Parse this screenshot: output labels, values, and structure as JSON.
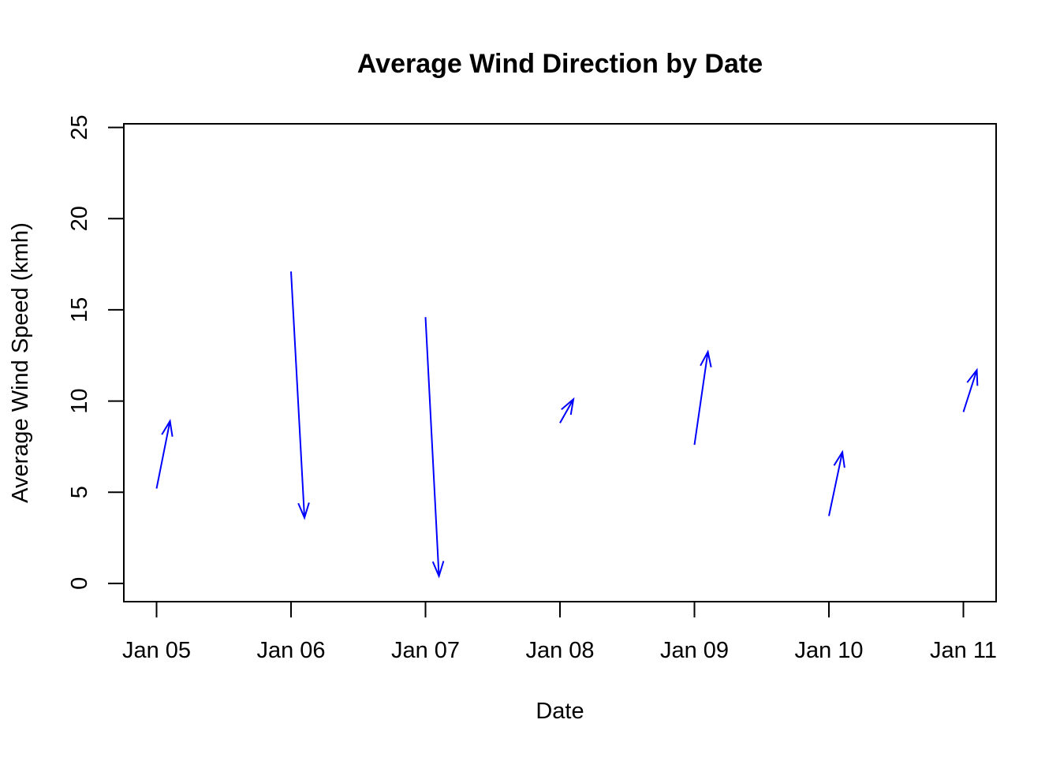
{
  "chart_data": {
    "type": "arrow-plot",
    "title": "Average Wind Direction by Date",
    "xlabel": "Date",
    "ylabel": "Average Wind Speed (kmh)",
    "x_ticks": [
      "Jan 05",
      "Jan 06",
      "Jan 07",
      "Jan 08",
      "Jan 09",
      "Jan 10",
      "Jan 11"
    ],
    "y_ticks": [
      "0",
      "5",
      "10",
      "15",
      "20",
      "25"
    ],
    "ylim": [
      -1,
      25.2
    ],
    "xlim": [
      "Jan 04 18:00",
      "Jan 11 06:00"
    ],
    "grid": false,
    "legend": "none",
    "color": "#0000ff",
    "arrows": [
      {
        "date": "Jan 05",
        "y_start": 5.2,
        "y_end": 8.9
      },
      {
        "date": "Jan 06",
        "y_start": 17.1,
        "y_end": 3.6
      },
      {
        "date": "Jan 07",
        "y_start": 14.6,
        "y_end": 0.4
      },
      {
        "date": "Jan 08",
        "y_start": 8.8,
        "y_end": 10.1
      },
      {
        "date": "Jan 09",
        "y_start": 7.6,
        "y_end": 12.7
      },
      {
        "date": "Jan 10",
        "y_start": 3.7,
        "y_end": 7.2
      },
      {
        "date": "Jan 11",
        "y_start": 9.4,
        "y_end": 11.7
      }
    ]
  }
}
